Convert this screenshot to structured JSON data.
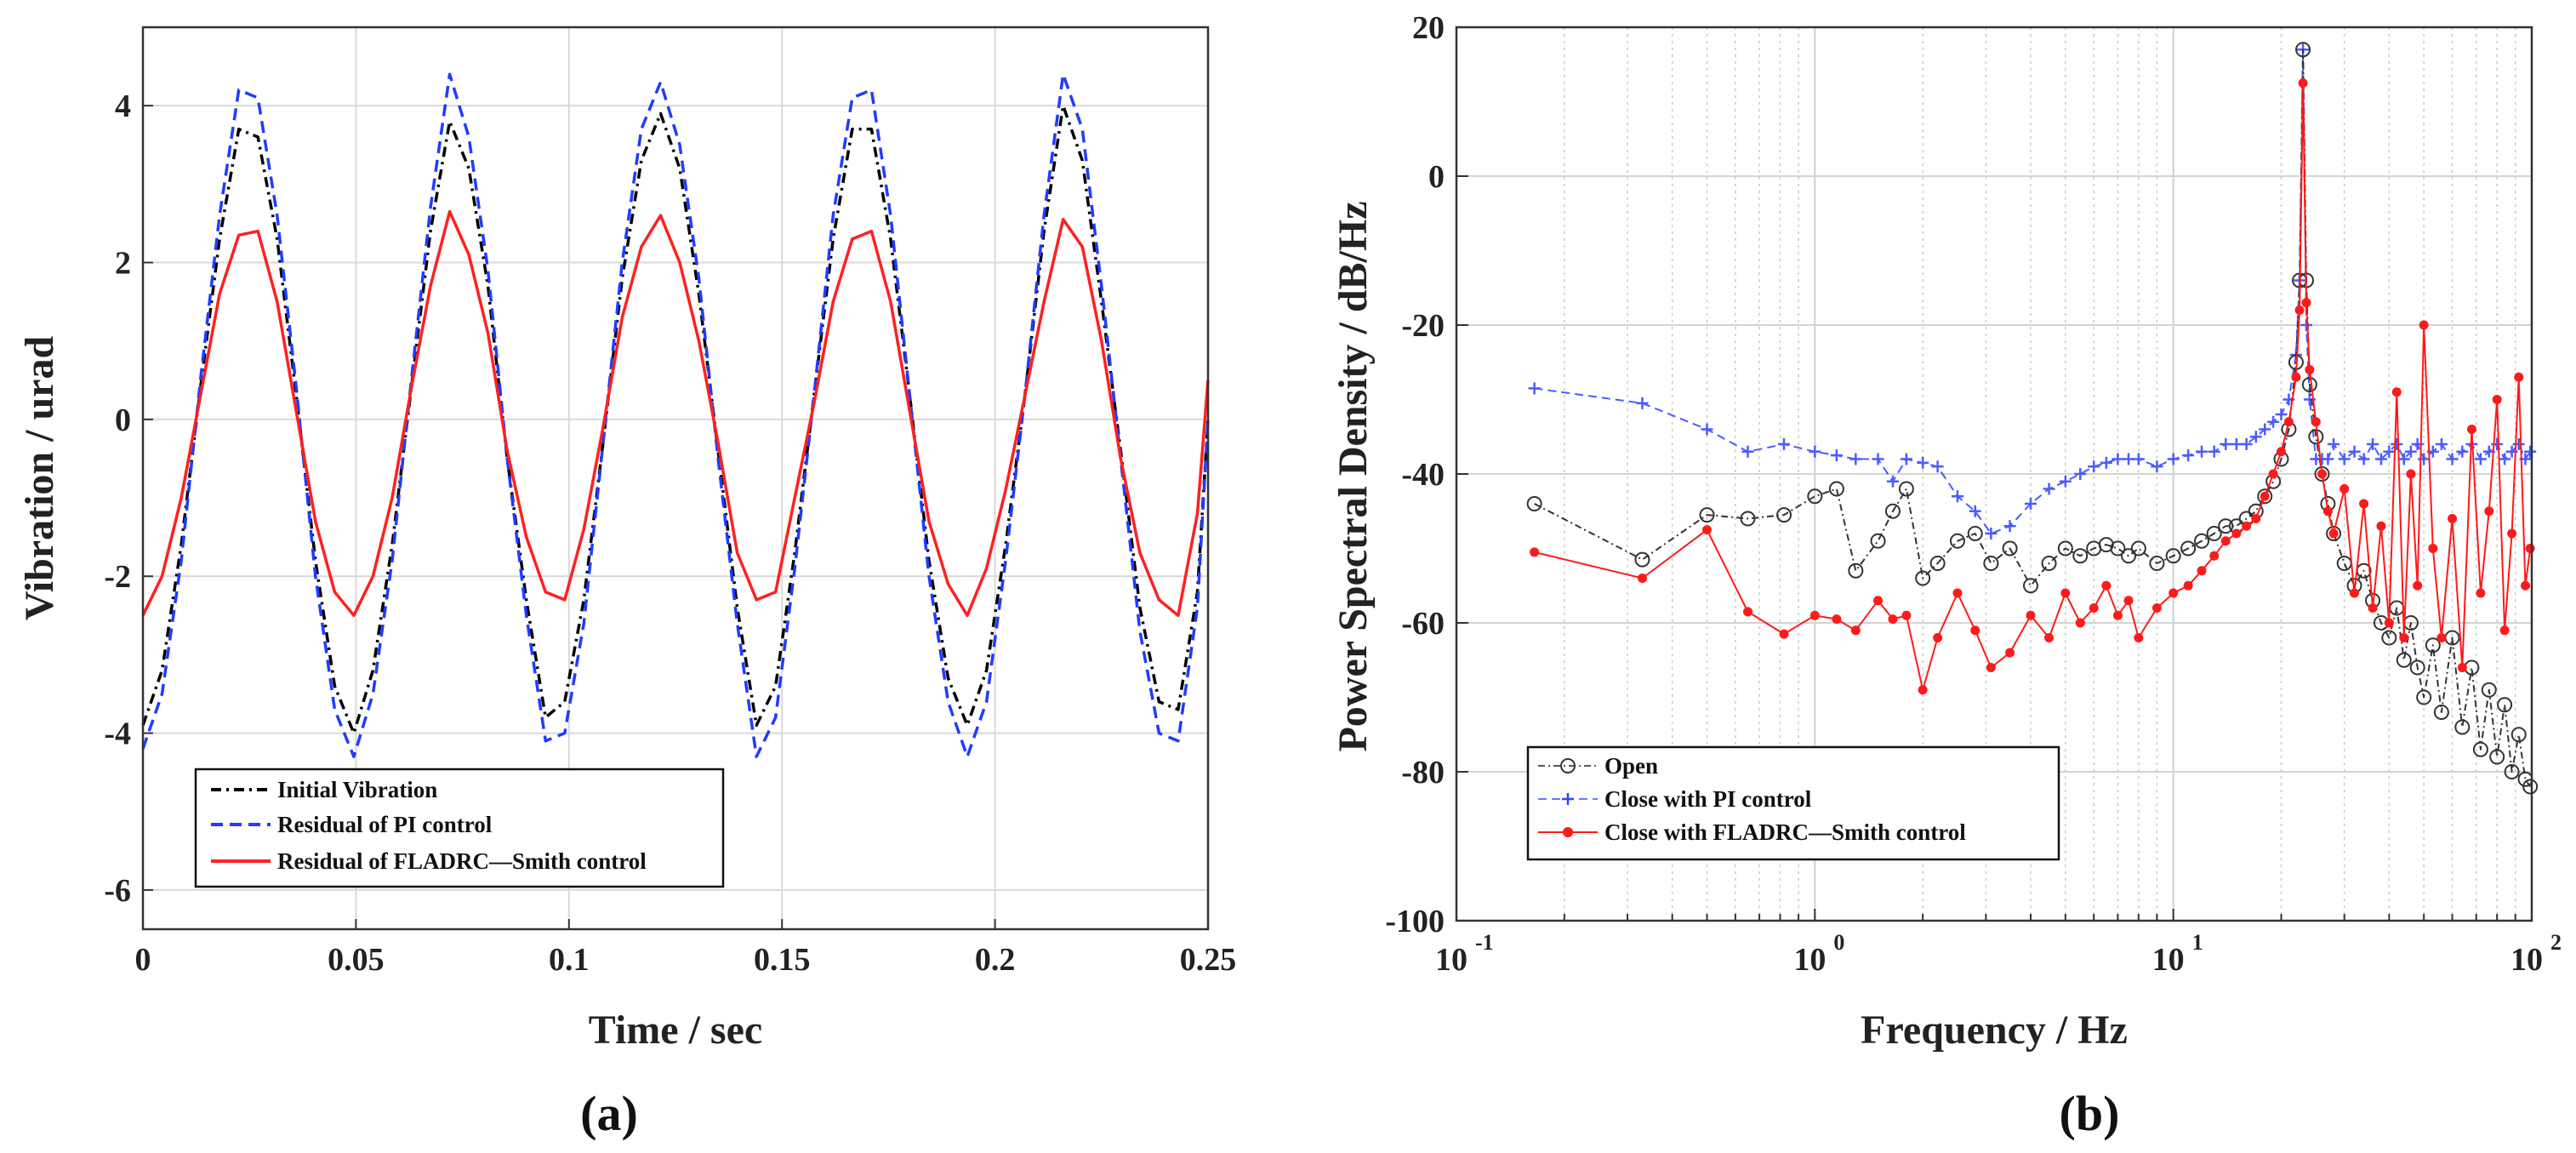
{
  "chart_data": [
    {
      "type": "line",
      "panel_label": "(a)",
      "xlabel": "Time / sec",
      "ylabel": "Vibration / urad",
      "xlim": [
        0,
        0.25
      ],
      "ylim": [
        -6.5,
        5
      ],
      "xticks": [
        0,
        0.05,
        0.1,
        0.15,
        0.2,
        0.25
      ],
      "xtick_labels": [
        "0",
        "0.05",
        "0.1",
        "0.15",
        "0.2",
        "0.25"
      ],
      "yticks": [
        4,
        2,
        0,
        -2,
        -4,
        -6
      ],
      "ytick_labels": [
        "4",
        "2",
        "0",
        "-2",
        "-4",
        "-6"
      ],
      "grid": true,
      "legend_position": "lower-left",
      "x": [
        0,
        0.0045,
        0.009,
        0.0135,
        0.018,
        0.0225,
        0.027,
        0.0315,
        0.036,
        0.0405,
        0.045,
        0.0495,
        0.054,
        0.0585,
        0.063,
        0.0675,
        0.072,
        0.0765,
        0.081,
        0.0855,
        0.09,
        0.0945,
        0.099,
        0.1035,
        0.108,
        0.1125,
        0.117,
        0.1215,
        0.126,
        0.1305,
        0.135,
        0.1395,
        0.144,
        0.1485,
        0.153,
        0.1575,
        0.162,
        0.1665,
        0.171,
        0.1755,
        0.18,
        0.1845,
        0.189,
        0.1935,
        0.198,
        0.2025,
        0.207,
        0.2115,
        0.216,
        0.2205,
        0.225,
        0.2295,
        0.234,
        0.2385,
        0.243,
        0.2475,
        0.25
      ],
      "series": [
        {
          "name": "Initial Vibration",
          "color": "#000000",
          "style": "dashdot",
          "values": [
            -3.9,
            -3.2,
            -1.6,
            0.4,
            2.3,
            3.7,
            3.6,
            2.3,
            0.3,
            -1.8,
            -3.4,
            -4.0,
            -3.2,
            -1.6,
            0.4,
            2.4,
            3.8,
            3.2,
            1.7,
            -0.5,
            -2.3,
            -3.8,
            -3.6,
            -2.3,
            -0.3,
            1.8,
            3.3,
            3.9,
            3.2,
            1.6,
            -0.4,
            -2.4,
            -3.9,
            -3.4,
            -1.7,
            0.3,
            2.3,
            3.7,
            3.7,
            2.3,
            0.3,
            -1.8,
            -3.3,
            -3.9,
            -3.2,
            -1.6,
            0.3,
            2.4,
            4.0,
            3.3,
            1.5,
            -0.4,
            -2.4,
            -3.6,
            -3.7,
            -2.2,
            0.0
          ]
        },
        {
          "name": "Residual of PI control",
          "color": "#1f3cff",
          "style": "dashed",
          "values": [
            -4.2,
            -3.5,
            -1.8,
            0.5,
            2.6,
            4.2,
            4.1,
            2.6,
            0.4,
            -2.0,
            -3.7,
            -4.3,
            -3.5,
            -1.8,
            0.5,
            2.7,
            4.4,
            3.6,
            1.9,
            -0.5,
            -2.5,
            -4.1,
            -4.0,
            -2.6,
            -0.3,
            2.0,
            3.7,
            4.3,
            3.5,
            1.8,
            -0.5,
            -2.6,
            -4.3,
            -3.8,
            -1.9,
            0.3,
            2.6,
            4.1,
            4.2,
            2.6,
            0.3,
            -2.0,
            -3.6,
            -4.3,
            -3.6,
            -1.8,
            0.3,
            2.6,
            4.4,
            3.7,
            1.7,
            -0.5,
            -2.7,
            -4.0,
            -4.1,
            -2.4,
            0.0
          ]
        },
        {
          "name": "Residual of FLADRC—Smith control",
          "color": "#ff2020",
          "style": "solid",
          "values": [
            -2.5,
            -2.0,
            -1.0,
            0.3,
            1.6,
            2.35,
            2.4,
            1.5,
            0.1,
            -1.3,
            -2.2,
            -2.5,
            -2.0,
            -1.0,
            0.4,
            1.7,
            2.65,
            2.1,
            1.1,
            -0.4,
            -1.5,
            -2.2,
            -2.3,
            -1.4,
            -0.1,
            1.3,
            2.2,
            2.6,
            2.0,
            1.0,
            -0.3,
            -1.7,
            -2.3,
            -2.2,
            -1.0,
            0.2,
            1.5,
            2.3,
            2.4,
            1.5,
            0.1,
            -1.3,
            -2.1,
            -2.5,
            -1.9,
            -0.9,
            0.3,
            1.5,
            2.55,
            2.2,
            1.0,
            -0.5,
            -1.7,
            -2.3,
            -2.5,
            -1.2,
            0.5
          ]
        }
      ]
    },
    {
      "type": "line",
      "panel_label": "(b)",
      "xlabel": "Frequency / Hz",
      "ylabel": "Power Spectral Density / dB/Hz",
      "xscale": "log",
      "xlim": [
        0.1,
        100
      ],
      "ylim": [
        -100,
        20
      ],
      "xtick_labels": [
        {
          "base": "10",
          "exp": "-1"
        },
        {
          "base": "10",
          "exp": "0"
        },
        {
          "base": "10",
          "exp": "1"
        },
        {
          "base": "10",
          "exp": "2"
        }
      ],
      "yticks": [
        20,
        0,
        -20,
        -40,
        -60,
        -80,
        -100
      ],
      "ytick_labels": [
        "20",
        "0",
        "-20",
        "-40",
        "-60",
        "-80",
        "-100"
      ],
      "grid": true,
      "legend_position": "lower-left",
      "x": [
        0.165,
        0.33,
        0.5,
        0.65,
        0.82,
        1.0,
        1.15,
        1.3,
        1.5,
        1.65,
        1.8,
        2.0,
        2.2,
        2.5,
        2.8,
        3.1,
        3.5,
        4.0,
        4.5,
        5.0,
        5.5,
        6.0,
        6.5,
        7.0,
        7.5,
        8.0,
        9.0,
        10.0,
        11.0,
        12.0,
        13.0,
        14.0,
        15.0,
        16.0,
        17.0,
        18.0,
        19.0,
        20.0,
        21.0,
        22.0,
        22.5,
        23.0,
        23.5,
        24.0,
        25.0,
        26.0,
        27.0,
        28.0,
        30.0,
        32.0,
        34.0,
        36.0,
        38.0,
        40.0,
        42.0,
        44.0,
        46.0,
        48.0,
        50.0,
        53.0,
        56.0,
        60.0,
        64.0,
        68.0,
        72.0,
        76.0,
        80.0,
        84.0,
        88.0,
        92.0,
        96.0,
        99.0
      ],
      "series": [
        {
          "name": "Open",
          "color": "#333333",
          "marker": "circle",
          "values": [
            -44,
            -51.5,
            -45.5,
            -46,
            -45.5,
            -43,
            -42,
            -53,
            -49,
            -45,
            -42,
            -54,
            -52,
            -49,
            -48,
            -52,
            -50,
            -55,
            -52,
            -50,
            -51,
            -50,
            -49.5,
            -50,
            -51,
            -50,
            -52,
            -51,
            -50,
            -49,
            -48,
            -47,
            -47,
            -46,
            -45,
            -43,
            -41,
            -38,
            -34,
            -25,
            -14,
            17,
            -14,
            -28,
            -35,
            -40,
            -44,
            -48,
            -52,
            -55,
            -53,
            -57,
            -60,
            -62,
            -58,
            -65,
            -60,
            -66,
            -70,
            -63,
            -72,
            -62,
            -74,
            -66,
            -77,
            -69,
            -78,
            -71,
            -80,
            -75,
            -81,
            -82
          ]
        },
        {
          "name": "Close with PI control",
          "color": "#4a5cff",
          "marker": "plus",
          "values": [
            -28.5,
            -30.5,
            -34,
            -37,
            -36,
            -37,
            -37.5,
            -38,
            -38,
            -41,
            -38,
            -38.5,
            -39,
            -43,
            -45,
            -48,
            -47,
            -44,
            -42,
            -41,
            -40,
            -39,
            -38.5,
            -38,
            -38,
            -38,
            -39,
            -38,
            -37.5,
            -37,
            -37,
            -36,
            -36,
            -36,
            -35,
            -34,
            -33,
            -32,
            -30,
            -24,
            -14,
            17,
            -20,
            -30,
            -38,
            -38,
            -38,
            -36,
            -38,
            -37,
            -38,
            -36,
            -38,
            -37,
            -36,
            -38,
            -37,
            -36,
            -38,
            -37,
            -36,
            -38,
            -37,
            -36,
            -38,
            -37,
            -36,
            -38,
            -37,
            -36,
            -38,
            -37
          ]
        },
        {
          "name": "Close with FLADRC—Smith control",
          "color": "#ff1a1a",
          "marker": "dot",
          "values": [
            -50.5,
            -54,
            -47.5,
            -58.5,
            -61.5,
            -59,
            -59.5,
            -61,
            -57,
            -59.5,
            -59,
            -69,
            -62,
            -56,
            -61,
            -66,
            -64,
            -59,
            -62,
            -56,
            -60,
            -58,
            -55,
            -59,
            -57,
            -62,
            -58,
            -56,
            -55,
            -53,
            -51,
            -49,
            -48,
            -47,
            -46,
            -43,
            -40,
            -37,
            -33,
            -27,
            -18,
            12.5,
            -17,
            -26,
            -33,
            -40,
            -45,
            -48,
            -42,
            -56,
            -44,
            -58,
            -47,
            -60,
            -29,
            -62,
            -40,
            -55,
            -20,
            -50,
            -62,
            -46,
            -66,
            -34,
            -56,
            -45,
            -30,
            -61,
            -48,
            -27,
            -55,
            -50
          ]
        }
      ]
    }
  ]
}
